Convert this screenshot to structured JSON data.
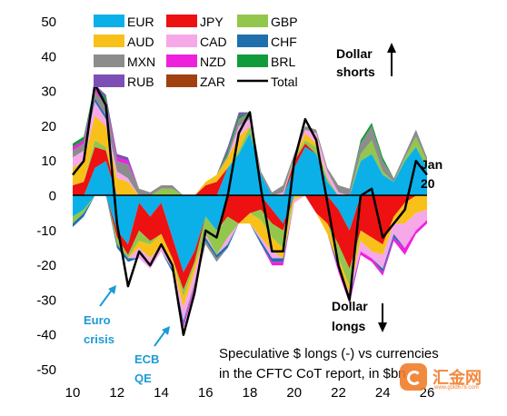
{
  "chart_data": {
    "type": "area",
    "stacked": true,
    "xlabel": "",
    "ylabel": "",
    "x_ticks": [
      "10",
      "12",
      "14",
      "16",
      "18",
      "20",
      "22",
      "24",
      "26"
    ],
    "x_range": [
      2010,
      2026
    ],
    "y_ticks": [
      "50",
      "40",
      "30",
      "20",
      "10",
      "0",
      "-10",
      "-20",
      "-30",
      "-40",
      "-50"
    ],
    "ylim": [
      -50,
      50
    ],
    "legend_position": "top-left",
    "legend": [
      {
        "name": "EUR",
        "color": "#0bb0e8"
      },
      {
        "name": "JPY",
        "color": "#ee1111"
      },
      {
        "name": "GBP",
        "color": "#92c64d"
      },
      {
        "name": "AUD",
        "color": "#f7c11a"
      },
      {
        "name": "CAD",
        "color": "#f7a8e8"
      },
      {
        "name": "CHF",
        "color": "#1f6fad"
      },
      {
        "name": "MXN",
        "color": "#8c8c8c"
      },
      {
        "name": "NZD",
        "color": "#ee22dd"
      },
      {
        "name": "BRL",
        "color": "#129b3a"
      },
      {
        "name": "RUB",
        "color": "#7d4fb6"
      },
      {
        "name": "ZAR",
        "color": "#a0410f"
      },
      {
        "name": "Total",
        "color": "#000000"
      }
    ],
    "x": [
      2010.0,
      2010.5,
      2011.0,
      2011.5,
      2012.0,
      2012.5,
      2013.0,
      2013.5,
      2014.0,
      2014.5,
      2015.0,
      2015.5,
      2016.0,
      2016.5,
      2017.0,
      2017.5,
      2018.0,
      2018.5,
      2019.0,
      2019.5,
      2020.0,
      2020.5,
      2021.0,
      2021.5,
      2022.0,
      2022.5,
      2023.0,
      2023.5,
      2024.0,
      2024.5,
      2025.0,
      2025.5,
      2026.0
    ],
    "series": [
      {
        "name": "EUR",
        "values": [
          -6,
          -4,
          8,
          10,
          -10,
          -14,
          -2,
          -6,
          -2,
          -12,
          -22,
          -16,
          -6,
          -10,
          8,
          12,
          18,
          6,
          -4,
          -8,
          8,
          14,
          12,
          4,
          -4,
          -10,
          10,
          12,
          6,
          4,
          10,
          14,
          8
        ]
      },
      {
        "name": "JPY",
        "values": [
          3,
          4,
          6,
          3,
          -2,
          -3,
          -8,
          -7,
          -9,
          -6,
          -5,
          -3,
          3,
          4,
          -6,
          -8,
          -5,
          -4,
          -4,
          -2,
          2,
          1,
          -5,
          -8,
          -10,
          -11,
          -10,
          -12,
          -14,
          -6,
          -2,
          0,
          0
        ]
      },
      {
        "name": "GBP",
        "values": [
          -2,
          -1,
          2,
          1,
          -2,
          -1,
          -3,
          -1,
          2,
          2,
          -2,
          -1,
          -5,
          -7,
          -6,
          1,
          2,
          -3,
          -4,
          -5,
          1,
          1,
          2,
          1,
          -4,
          -5,
          2,
          4,
          1,
          0,
          1,
          3,
          2
        ]
      },
      {
        "name": "AUD",
        "values": [
          5,
          6,
          7,
          6,
          5,
          4,
          -2,
          -4,
          -3,
          -2,
          -3,
          -2,
          1,
          2,
          3,
          4,
          -3,
          -5,
          -4,
          -3,
          -1,
          2,
          1,
          -3,
          -2,
          -2,
          -3,
          -4,
          -3,
          -2,
          -6,
          -5,
          -4
        ]
      },
      {
        "name": "CAD",
        "values": [
          3,
          3,
          4,
          2,
          2,
          1,
          -3,
          -3,
          -2,
          -1,
          -4,
          -3,
          -1,
          0,
          -2,
          3,
          2,
          -1,
          -2,
          1,
          -1,
          1,
          3,
          2,
          1,
          -1,
          -3,
          -2,
          -4,
          -3,
          -7,
          -5,
          -3
        ]
      },
      {
        "name": "CHF",
        "values": [
          -1,
          -1,
          1,
          1,
          -1,
          -1,
          0,
          0,
          0,
          -1,
          -1,
          0,
          -1,
          -1,
          -1,
          0,
          0,
          -1,
          -1,
          -1,
          0,
          0,
          0,
          0,
          -1,
          -1,
          0,
          0,
          -1,
          -1,
          0,
          0,
          0
        ]
      },
      {
        "name": "MXN",
        "values": [
          2,
          2,
          2,
          3,
          3,
          4,
          2,
          1,
          1,
          1,
          0,
          -1,
          -1,
          -1,
          1,
          2,
          2,
          1,
          1,
          2,
          1,
          1,
          1,
          1,
          2,
          2,
          3,
          4,
          3,
          1,
          1,
          2,
          1
        ]
      },
      {
        "name": "NZD",
        "values": [
          1,
          1,
          1,
          1,
          1,
          1,
          0,
          0,
          0,
          0,
          -1,
          -1,
          0,
          0,
          0,
          0,
          0,
          0,
          -1,
          -1,
          0,
          0,
          0,
          0,
          -1,
          -1,
          -1,
          -1,
          -1,
          -1,
          -2,
          -1,
          -1
        ]
      },
      {
        "name": "BRL",
        "values": [
          1,
          1,
          1,
          1,
          0,
          0,
          0,
          0,
          0,
          0,
          0,
          0,
          0,
          0,
          1,
          1,
          0,
          0,
          0,
          0,
          0,
          0,
          0,
          0,
          0,
          0,
          1,
          1,
          1,
          0,
          0,
          0,
          0
        ]
      },
      {
        "name": "RUB",
        "values": [
          0,
          0,
          0,
          1,
          1,
          1,
          0,
          0,
          0,
          0,
          0,
          0,
          0,
          0,
          1,
          1,
          0,
          0,
          0,
          0,
          0,
          0,
          0,
          0,
          0,
          0,
          0,
          0,
          0,
          0,
          0,
          0,
          0
        ]
      },
      {
        "name": "ZAR",
        "values": [
          0,
          0,
          0,
          0,
          0,
          0,
          0,
          0,
          0,
          0,
          0,
          0,
          0,
          0,
          0,
          0,
          0,
          0,
          0,
          0,
          0,
          0,
          0,
          0,
          0,
          0,
          0,
          0,
          0,
          0,
          0,
          0,
          0
        ]
      },
      {
        "name": "Total",
        "values": [
          6,
          10,
          32,
          26,
          -8,
          -26,
          -16,
          -20,
          -14,
          -20,
          -40,
          -28,
          -10,
          -12,
          0,
          18,
          24,
          2,
          -16,
          -16,
          10,
          22,
          16,
          -2,
          -20,
          -30,
          0,
          2,
          -12,
          -8,
          -4,
          10,
          6
        ]
      }
    ],
    "annotations": {
      "dollar_shorts": [
        "Dollar",
        "shorts"
      ],
      "dollar_longs": [
        "Dollar",
        "longs"
      ],
      "jan": [
        "Jan",
        "20"
      ],
      "euro_crisis": [
        "Euro",
        "crisis"
      ],
      "ecb_qe": [
        "ECB",
        "QE"
      ]
    },
    "caption": [
      "Speculative $ longs (-) vs currencies",
      "in the CFTC CoT report, in $bn"
    ]
  },
  "watermark": {
    "text": "汇金网",
    "url": "www.gold678.com"
  }
}
